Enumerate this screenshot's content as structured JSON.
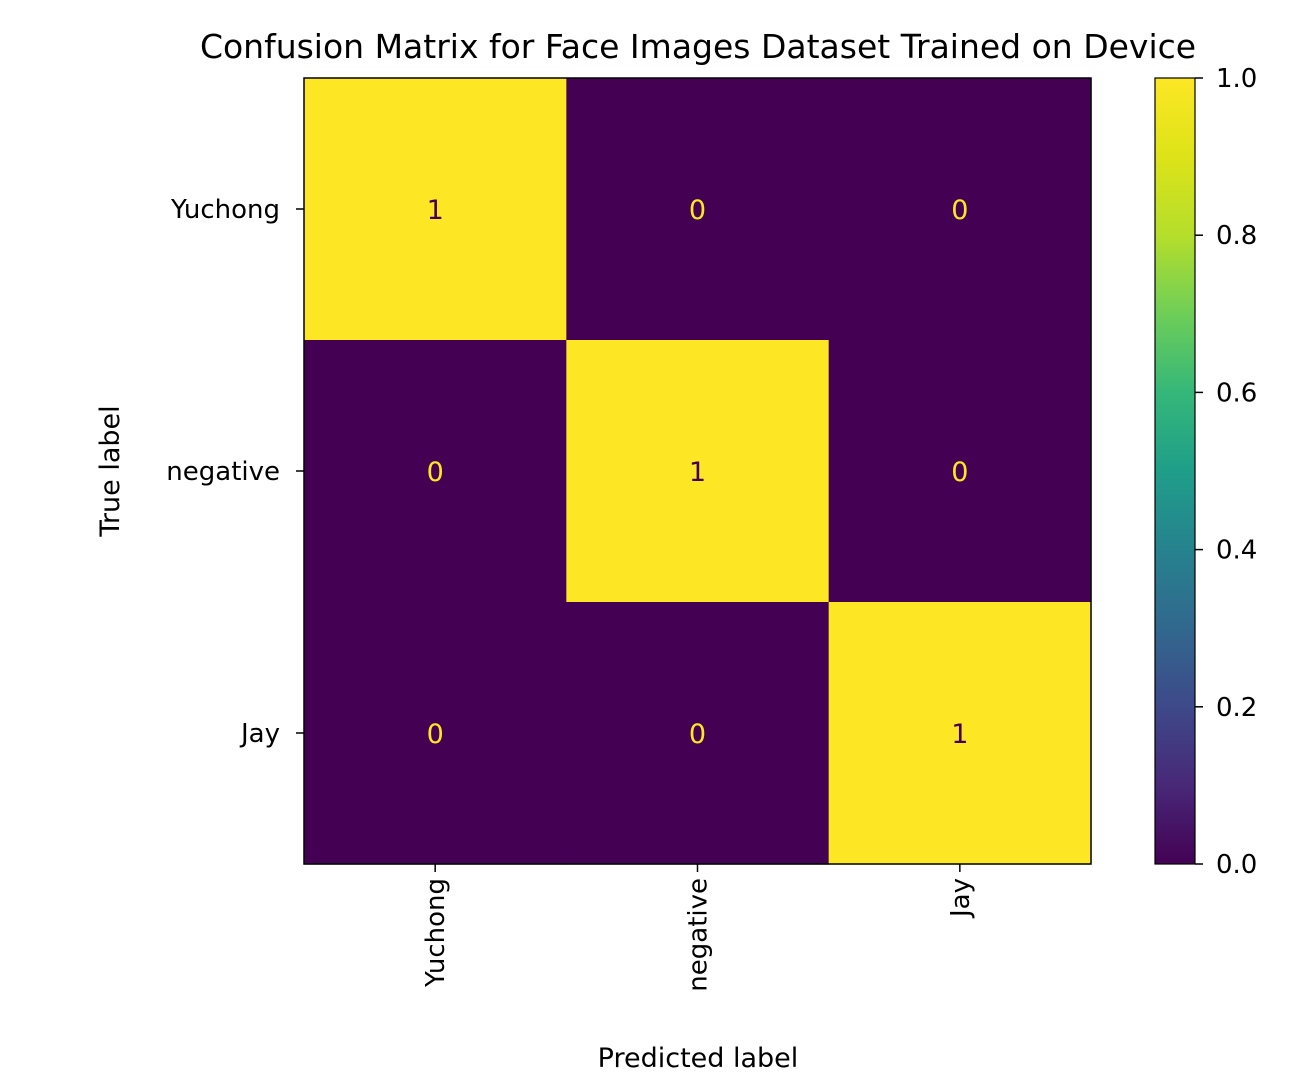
{
  "chart_data": {
    "type": "heatmap",
    "title": "Confusion Matrix for Face Images Dataset Trained on Device",
    "xlabel": "Predicted label",
    "ylabel": "True label",
    "x_categories": [
      "Yuchong",
      "negative",
      "Jay"
    ],
    "y_categories": [
      "Yuchong",
      "negative",
      "Jay"
    ],
    "values": [
      [
        1,
        0,
        0
      ],
      [
        0,
        1,
        0
      ],
      [
        0,
        0,
        1
      ]
    ],
    "cell_labels": [
      [
        "1",
        "0",
        "0"
      ],
      [
        "0",
        "1",
        "0"
      ],
      [
        "0",
        "0",
        "1"
      ]
    ],
    "colorbar": {
      "range": [
        0.0,
        1.0
      ],
      "ticks": [
        0.0,
        0.2,
        0.4,
        0.6,
        0.8,
        1.0
      ],
      "tick_labels": [
        "0.0",
        "0.2",
        "0.4",
        "0.6",
        "0.8",
        "1.0"
      ],
      "colormap": "viridis"
    },
    "colors": {
      "low": "#440154",
      "high": "#fde725",
      "text_on_low": "#fde725",
      "text_on_high": "#440154"
    }
  }
}
